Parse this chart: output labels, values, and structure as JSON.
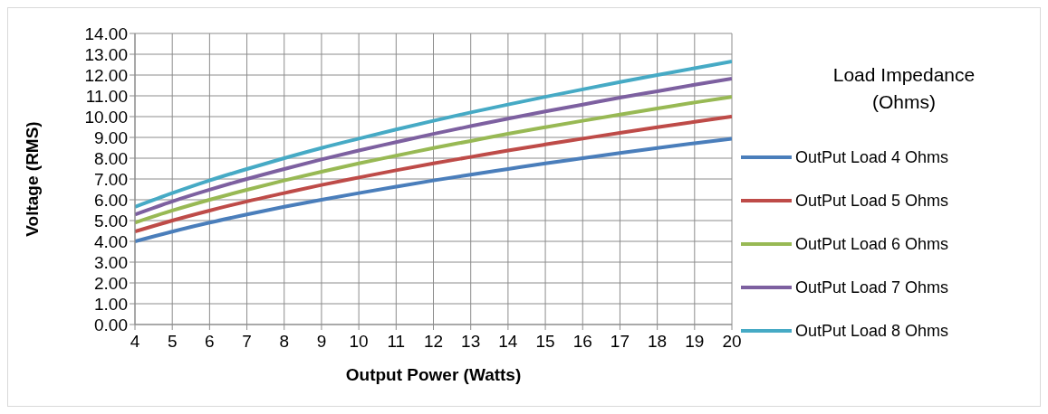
{
  "chart_data": {
    "type": "line",
    "xlabel": "Output Power (Watts)",
    "ylabel": "Voltage (RMS)",
    "legend_title": "Load Impedance (Ohms)",
    "legend": "right",
    "grid": true,
    "marker": "none",
    "line_style": "solid",
    "x": [
      4,
      5,
      6,
      7,
      8,
      9,
      10,
      11,
      12,
      13,
      14,
      15,
      16,
      17,
      18,
      19,
      20
    ],
    "xlim": [
      4,
      20
    ],
    "xticks": [
      4,
      5,
      6,
      7,
      8,
      9,
      10,
      11,
      12,
      13,
      14,
      15,
      16,
      17,
      18,
      19,
      20
    ],
    "ylim": [
      0,
      14
    ],
    "yticks": [
      {
        "value": 0,
        "label": "0.00"
      },
      {
        "value": 1,
        "label": "1.00"
      },
      {
        "value": 2,
        "label": "2.00"
      },
      {
        "value": 3,
        "label": "3.00"
      },
      {
        "value": 4,
        "label": "4.00"
      },
      {
        "value": 5,
        "label": "5.00"
      },
      {
        "value": 6,
        "label": "6.00"
      },
      {
        "value": 7,
        "label": "7.00"
      },
      {
        "value": 8,
        "label": "8.00"
      },
      {
        "value": 9,
        "label": "9.00"
      },
      {
        "value": 10,
        "label": "10.00"
      },
      {
        "value": 11,
        "label": "11.00"
      },
      {
        "value": 12,
        "label": "12.00"
      },
      {
        "value": 13,
        "label": "13.00"
      },
      {
        "value": 14,
        "label": "14.00"
      }
    ],
    "series": [
      {
        "name": "OutPut Load 4 Ohms",
        "color": "#4a7ebb",
        "values": [
          4,
          4.47,
          4.9,
          5.29,
          5.66,
          6,
          6.32,
          6.63,
          6.93,
          7.21,
          7.48,
          7.75,
          8,
          8.25,
          8.49,
          8.72,
          8.94
        ]
      },
      {
        "name": "OutPut Load 5 Ohms",
        "color": "#be4b48",
        "values": [
          4.47,
          5,
          5.48,
          5.92,
          6.32,
          6.71,
          7.07,
          7.42,
          7.75,
          8.06,
          8.37,
          8.66,
          8.94,
          9.22,
          9.49,
          9.75,
          10
        ]
      },
      {
        "name": "OutPut Load 6 Ohms",
        "color": "#98b954",
        "values": [
          4.9,
          5.48,
          6,
          6.48,
          6.93,
          7.35,
          7.75,
          8.12,
          8.49,
          8.83,
          9.17,
          9.49,
          9.8,
          10.1,
          10.39,
          10.68,
          10.95
        ]
      },
      {
        "name": "OutPut Load 7 Ohms",
        "color": "#7d60a0",
        "values": [
          5.29,
          5.92,
          6.48,
          7,
          7.48,
          7.94,
          8.37,
          8.77,
          9.17,
          9.54,
          9.9,
          10.25,
          10.58,
          10.91,
          11.22,
          11.53,
          11.83
        ]
      },
      {
        "name": "OutPut Load 8 Ohms",
        "color": "#46aac5",
        "values": [
          5.66,
          6.32,
          6.93,
          7.48,
          8,
          8.49,
          8.94,
          9.38,
          9.8,
          10.2,
          10.58,
          10.95,
          11.31,
          11.66,
          12,
          12.33,
          12.65
        ]
      }
    ]
  }
}
